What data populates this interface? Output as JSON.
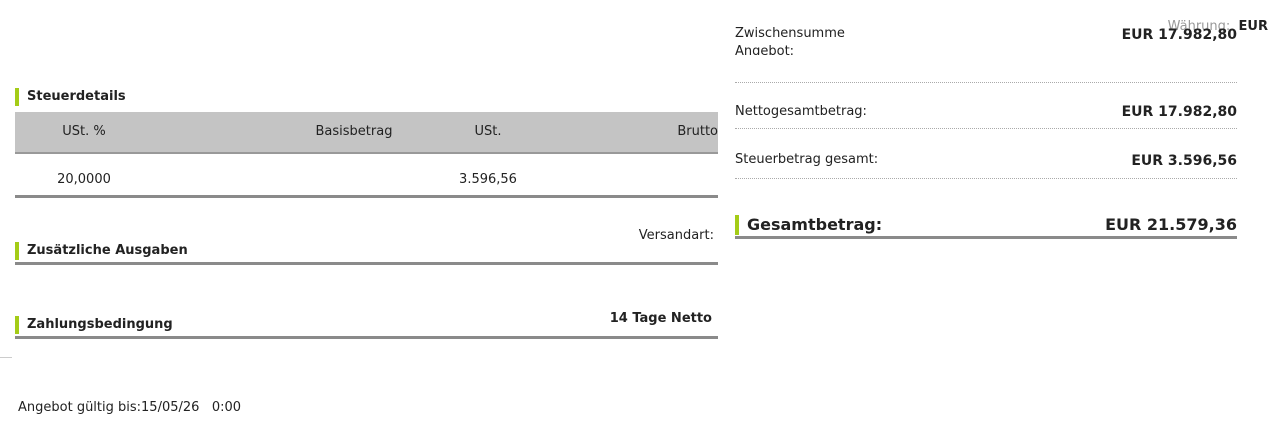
{
  "currency": {
    "label": "Währung:",
    "value": "EUR"
  },
  "tax_details": {
    "title": "Steuerdetails",
    "columns": [
      "USt. %",
      "Basisbetrag",
      "USt.",
      "Brutto"
    ],
    "rows": [
      [
        "20,0000",
        "",
        "3.596,56",
        ""
      ]
    ]
  },
  "extra_costs": {
    "title": "Zusätzliche Ausgaben",
    "shipping_label": "Versandart:"
  },
  "payment": {
    "title": "Zahlungsbedingung",
    "value": "14 Tage Netto"
  },
  "valid_until": {
    "label": "Angebot gültig bis:",
    "date": "15/05/26",
    "time": "0:00"
  },
  "summary": {
    "subtotal_label_1": "Zwischensumme",
    "subtotal_label_2": "Angebot:",
    "subtotal": "EUR 17.982,80",
    "net_label": "Nettogesamtbetrag:",
    "net": "EUR 17.982,80",
    "tax_label": "Steuerbetrag gesamt:",
    "tax": "EUR 3.596,56",
    "total_label": "Gesamtbetrag:",
    "total": "EUR 21.579,36"
  },
  "colors": {
    "accent": "#a4cc17",
    "header_bg": "#c4c4c4",
    "rule": "#8a8a8a"
  }
}
